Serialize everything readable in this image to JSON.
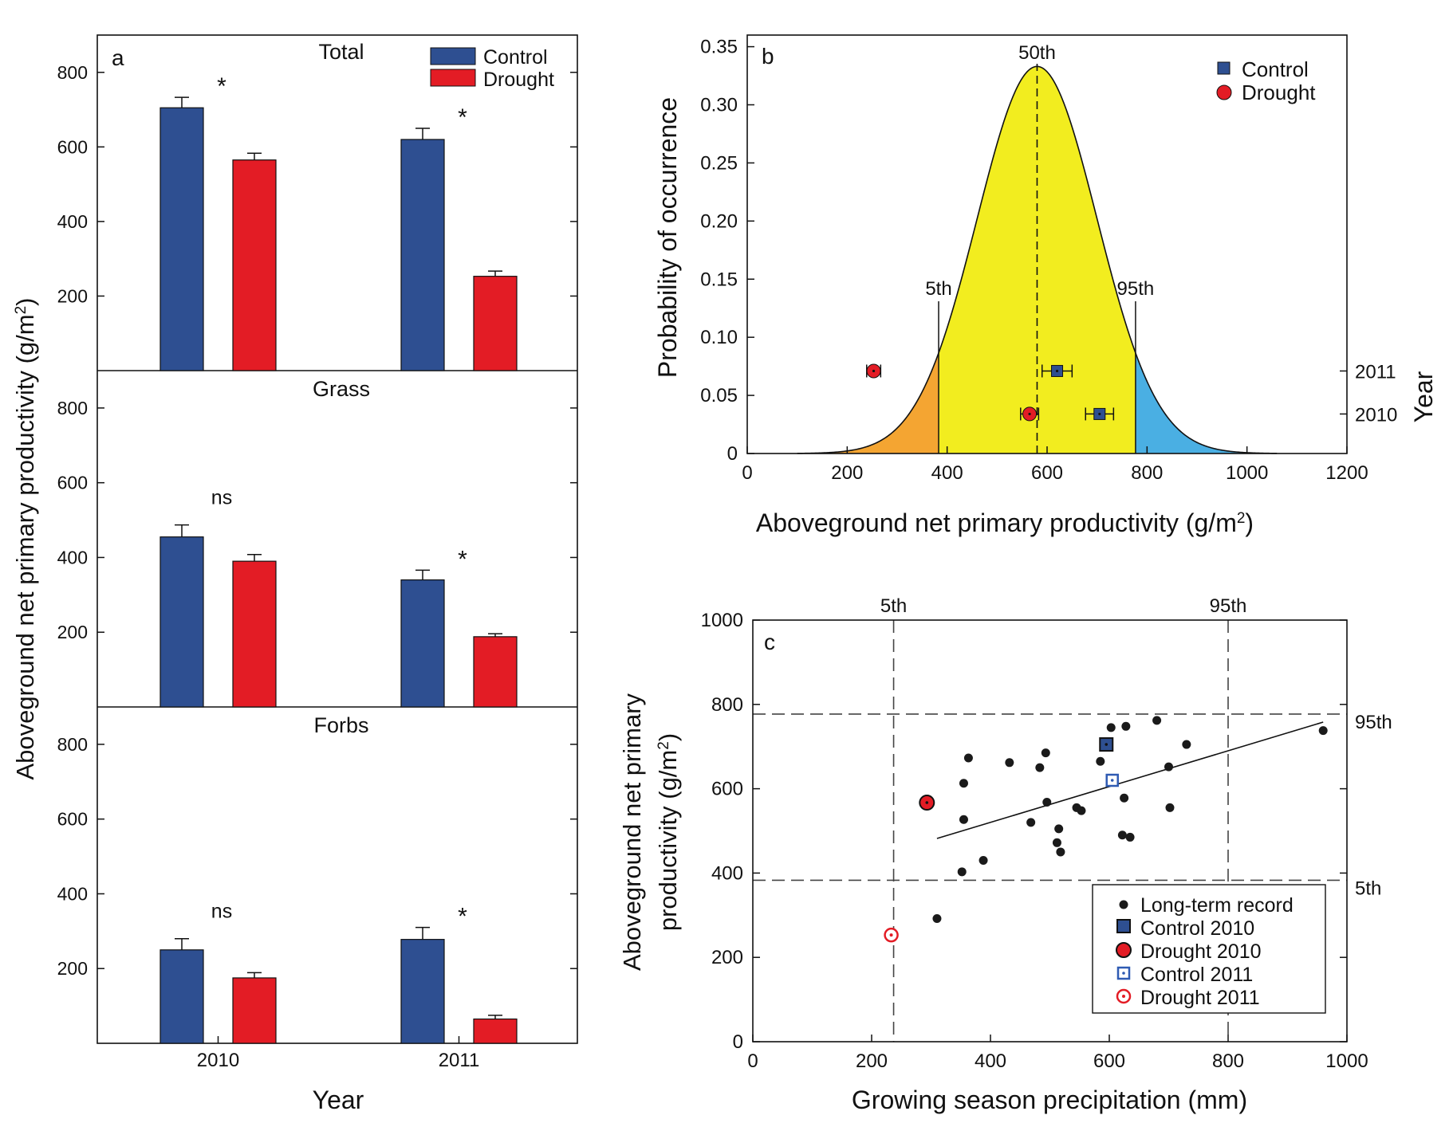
{
  "colors": {
    "control": "#2e4f91",
    "drought": "#e31c25",
    "yellow": "#f2ed1f",
    "orange": "#f4a532",
    "blue": "#4aafe3",
    "point": "#1a1a1a",
    "control_2011": "#2f5bb3",
    "drought_2011": "#e31c25"
  },
  "chart_data": [
    {
      "id": "a",
      "panel_letter": "a",
      "type": "bar",
      "ylabel": "Aboveground net primary productivity (g/m",
      "ylabel_sup": "2",
      "ylabel_end": ")",
      "xlabel": "Year",
      "categories": [
        "2010",
        "2011"
      ],
      "legend": [
        "Control",
        "Drought"
      ],
      "subpanels": [
        {
          "title": "Total",
          "ylim": [
            0,
            900
          ],
          "yticks": [
            "200",
            "400",
            "600",
            "800"
          ],
          "series": [
            {
              "name": "Control",
              "values": [
                705,
                620
              ],
              "errors": [
                28,
                30
              ]
            },
            {
              "name": "Drought",
              "values": [
                565,
                253
              ],
              "errors": [
                18,
                14
              ]
            }
          ],
          "annotations": [
            "*",
            "*"
          ]
        },
        {
          "title": "Grass",
          "ylim": [
            0,
            900
          ],
          "yticks": [
            "200",
            "400",
            "600",
            "800"
          ],
          "series": [
            {
              "name": "Control",
              "values": [
                455,
                340
              ],
              "errors": [
                32,
                26
              ]
            },
            {
              "name": "Drought",
              "values": [
                390,
                188
              ],
              "errors": [
                18,
                8
              ]
            }
          ],
          "annotations": [
            "ns",
            "*"
          ]
        },
        {
          "title": "Forbs",
          "ylim": [
            0,
            900
          ],
          "yticks": [
            "200",
            "400",
            "600",
            "800"
          ],
          "series": [
            {
              "name": "Control",
              "values": [
                250,
                278
              ],
              "errors": [
                30,
                32
              ]
            },
            {
              "name": "Drought",
              "values": [
                175,
                65
              ],
              "errors": [
                14,
                10
              ]
            }
          ],
          "annotations": [
            "ns",
            "*"
          ]
        }
      ]
    },
    {
      "id": "b",
      "panel_letter": "b",
      "type": "area",
      "xlabel": "Aboveground net primary productivity (g/m",
      "xlabel_sup": "2",
      "xlabel_end": ")",
      "ylabel": "Probability of occurrence",
      "right_label": "Year",
      "xlim": [
        0,
        1200
      ],
      "ylim": [
        0,
        0.36
      ],
      "xticks": [
        "0",
        "200",
        "400",
        "600",
        "800",
        "1000",
        "1200"
      ],
      "yticks": [
        "0",
        "0.05",
        "0.10",
        "0.15",
        "0.20",
        "0.25",
        "0.30",
        "0.35"
      ],
      "distribution": {
        "mean": 580,
        "sd": 120,
        "peak": 0.333
      },
      "percentiles": [
        {
          "label": "5th",
          "x": 383
        },
        {
          "label": "50th",
          "x": 580
        },
        {
          "label": "95th",
          "x": 777
        }
      ],
      "legend": [
        "Control",
        "Drought"
      ],
      "year_labels": [
        {
          "year": "2011",
          "y": 0.071
        },
        {
          "year": "2010",
          "y": 0.034
        }
      ],
      "points": [
        {
          "series": "Control",
          "year": "2011",
          "x": 620,
          "y": 0.071,
          "err": 30
        },
        {
          "series": "Drought",
          "year": "2011",
          "x": 253,
          "y": 0.071,
          "err": 14
        },
        {
          "series": "Control",
          "year": "2010",
          "x": 705,
          "y": 0.034,
          "err": 28
        },
        {
          "series": "Drought",
          "year": "2010",
          "x": 565,
          "y": 0.034,
          "err": 18
        }
      ]
    },
    {
      "id": "c",
      "panel_letter": "c",
      "type": "scatter",
      "xlabel": "Growing season precipitation (mm)",
      "ylabel_line1": "Aboveground net primary",
      "ylabel_line2": "productivity (g/m",
      "ylabel_sup": "2",
      "ylabel_end": ")",
      "xlim": [
        0,
        1000
      ],
      "ylim": [
        0,
        1000
      ],
      "xticks": [
        "0",
        "200",
        "400",
        "600",
        "800",
        "1000"
      ],
      "yticks": [
        "0",
        "200",
        "400",
        "600",
        "800",
        "1000"
      ],
      "percentile_x": [
        {
          "label": "5th",
          "x": 237
        },
        {
          "label": "95th",
          "x": 800
        }
      ],
      "percentile_y": [
        {
          "label": "5th",
          "y": 383
        },
        {
          "label": "95th",
          "y": 777
        }
      ],
      "regression": {
        "x": [
          310,
          960
        ],
        "y": [
          482,
          758
        ]
      },
      "long_term_record": [
        [
          310,
          292
        ],
        [
          352,
          403
        ],
        [
          355,
          613
        ],
        [
          355,
          527
        ],
        [
          363,
          673
        ],
        [
          388,
          430
        ],
        [
          432,
          662
        ],
        [
          468,
          520
        ],
        [
          483,
          650
        ],
        [
          493,
          685
        ],
        [
          495,
          568
        ],
        [
          512,
          472
        ],
        [
          515,
          505
        ],
        [
          518,
          450
        ],
        [
          545,
          555
        ],
        [
          553,
          548
        ],
        [
          585,
          665
        ],
        [
          603,
          745
        ],
        [
          622,
          490
        ],
        [
          625,
          578
        ],
        [
          628,
          748
        ],
        [
          635,
          485
        ],
        [
          680,
          762
        ],
        [
          700,
          652
        ],
        [
          702,
          555
        ],
        [
          730,
          705
        ],
        [
          960,
          738
        ]
      ],
      "highlighted": [
        {
          "label": "Control 2010",
          "x": 595,
          "y": 705
        },
        {
          "label": "Drought 2010",
          "x": 293,
          "y": 567
        },
        {
          "label": "Control 2011",
          "x": 605,
          "y": 620
        },
        {
          "label": "Drought 2011",
          "x": 233,
          "y": 253
        }
      ],
      "legend": [
        "Long-term record",
        "Control 2010",
        "Drought 2010",
        "Control 2011",
        "Drought 2011"
      ]
    }
  ]
}
